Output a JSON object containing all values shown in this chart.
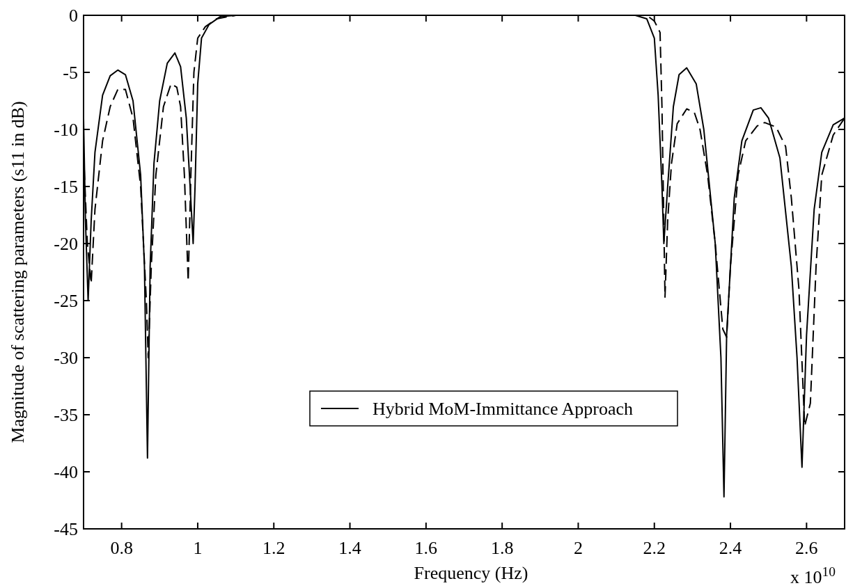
{
  "chart_data": {
    "type": "line",
    "xlabel": "Frequency (Hz)",
    "ylabel": "Magnitude of scattering parameters (s11 in dB)",
    "annotations": [
      "x 10$^{10}$"
    ],
    "xlim": [
      0.7,
      2.7
    ],
    "xticks": [
      0.8,
      1,
      1.2,
      1.4,
      1.6,
      1.8,
      2,
      2.2,
      2.4,
      2.6
    ],
    "ylim": [
      -45,
      0
    ],
    "yticks": [
      -45,
      -40,
      -35,
      -30,
      -25,
      -20,
      -15,
      -10,
      -5,
      0
    ],
    "grid": false,
    "legend": "bottom",
    "marker": "none",
    "series": [
      {
        "name": "Hybrid MoM-Immittance Approach",
        "color": "#000000",
        "line_style": "solid",
        "x": [
          0.7,
          0.705,
          0.712,
          0.72,
          0.73,
          0.75,
          0.77,
          0.79,
          0.81,
          0.83,
          0.85,
          0.86,
          0.868,
          0.875,
          0.885,
          0.9,
          0.92,
          0.94,
          0.955,
          0.97,
          0.98,
          0.988,
          0.993,
          1.0,
          1.01,
          1.03,
          1.06,
          1.1,
          2.15,
          2.18,
          2.2,
          2.21,
          2.22,
          2.225,
          2.235,
          2.25,
          2.265,
          2.285,
          2.31,
          2.33,
          2.36,
          2.375,
          2.383,
          2.39,
          2.41,
          2.43,
          2.46,
          2.48,
          2.5,
          2.53,
          2.56,
          2.575,
          2.588,
          2.6,
          2.62,
          2.64,
          2.67,
          2.7
        ],
        "values": [
          -9,
          -18,
          -25,
          -18,
          -12,
          -7,
          -5.3,
          -4.8,
          -5.2,
          -7.5,
          -14,
          -22,
          -38.8,
          -22,
          -13,
          -7.5,
          -4.2,
          -3.3,
          -4.5,
          -9,
          -15,
          -20,
          -15,
          -6,
          -2,
          -0.8,
          -0.1,
          0,
          0,
          -0.3,
          -2,
          -7,
          -15,
          -20,
          -15,
          -8,
          -5.2,
          -4.6,
          -6,
          -10,
          -20,
          -30,
          -42.2,
          -28,
          -16,
          -11,
          -8.3,
          -8.1,
          -9,
          -12.5,
          -22,
          -30,
          -39.6,
          -28,
          -17,
          -12,
          -9.6,
          -9
        ]
      },
      {
        "color": "#000000",
        "line_style": "dashed",
        "x": [
          0.7,
          0.71,
          0.72,
          0.73,
          0.75,
          0.77,
          0.79,
          0.81,
          0.83,
          0.85,
          0.865,
          0.87,
          0.878,
          0.89,
          0.91,
          0.93,
          0.945,
          0.955,
          0.965,
          0.975,
          0.982,
          0.99,
          1.0,
          1.02,
          1.05,
          1.1,
          2.18,
          2.2,
          2.215,
          2.22,
          2.228,
          2.235,
          2.245,
          2.26,
          2.285,
          2.305,
          2.32,
          2.34,
          2.36,
          2.38,
          2.39,
          2.4,
          2.42,
          2.44,
          2.47,
          2.49,
          2.52,
          2.545,
          2.56,
          2.58,
          2.595,
          2.61,
          2.625,
          2.64,
          2.67,
          2.7
        ],
        "values": [
          -12,
          -20,
          -23.5,
          -17,
          -11,
          -8,
          -6.5,
          -6.5,
          -9,
          -15,
          -25,
          -30,
          -22,
          -14,
          -8,
          -6,
          -6.3,
          -8,
          -14,
          -23.3,
          -14,
          -5,
          -2,
          -1,
          -0.3,
          0,
          0,
          -0.5,
          -1.5,
          -8,
          -24.7,
          -18,
          -13,
          -9.5,
          -8.2,
          -8.5,
          -10,
          -14,
          -20,
          -27.5,
          -28.2,
          -22,
          -14,
          -11,
          -9.7,
          -9.4,
          -9.8,
          -11.5,
          -16,
          -24,
          -36,
          -34,
          -22,
          -14,
          -10.5,
          -9
        ]
      }
    ]
  }
}
